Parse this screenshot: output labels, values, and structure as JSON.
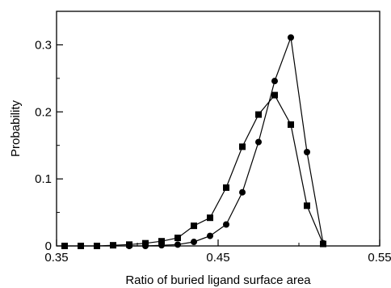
{
  "chart_data": {
    "type": "line",
    "xlabel": "Ratio of buried ligand surface area",
    "ylabel": "Probability",
    "xlim": [
      0.35,
      0.55
    ],
    "ylim": [
      0,
      0.35
    ],
    "x_ticks": [
      0.35,
      0.45,
      0.55
    ],
    "x_tick_labels": [
      "0.35",
      "0.45",
      "0.55"
    ],
    "y_ticks": [
      0,
      0.1,
      0.2,
      0.3
    ],
    "y_tick_labels": [
      "0",
      "0.1",
      "0.2",
      "0.3"
    ],
    "grid": false,
    "legend": false,
    "series": [
      {
        "marker": "square",
        "x": [
          0.355,
          0.365,
          0.375,
          0.385,
          0.395,
          0.405,
          0.415,
          0.425,
          0.435,
          0.445,
          0.455,
          0.465,
          0.475,
          0.485,
          0.495,
          0.505,
          0.515
        ],
        "y": [
          0,
          0,
          0,
          0.001,
          0.002,
          0.004,
          0.007,
          0.012,
          0.03,
          0.042,
          0.087,
          0.148,
          0.196,
          0.225,
          0.181,
          0.06,
          0.003
        ]
      },
      {
        "marker": "circle",
        "x": [
          0.395,
          0.405,
          0.415,
          0.425,
          0.435,
          0.445,
          0.455,
          0.465,
          0.475,
          0.485,
          0.495,
          0.505,
          0.515
        ],
        "y": [
          0,
          0,
          0.001,
          0.002,
          0.006,
          0.015,
          0.032,
          0.08,
          0.155,
          0.246,
          0.311,
          0.14,
          0.004
        ]
      }
    ]
  }
}
